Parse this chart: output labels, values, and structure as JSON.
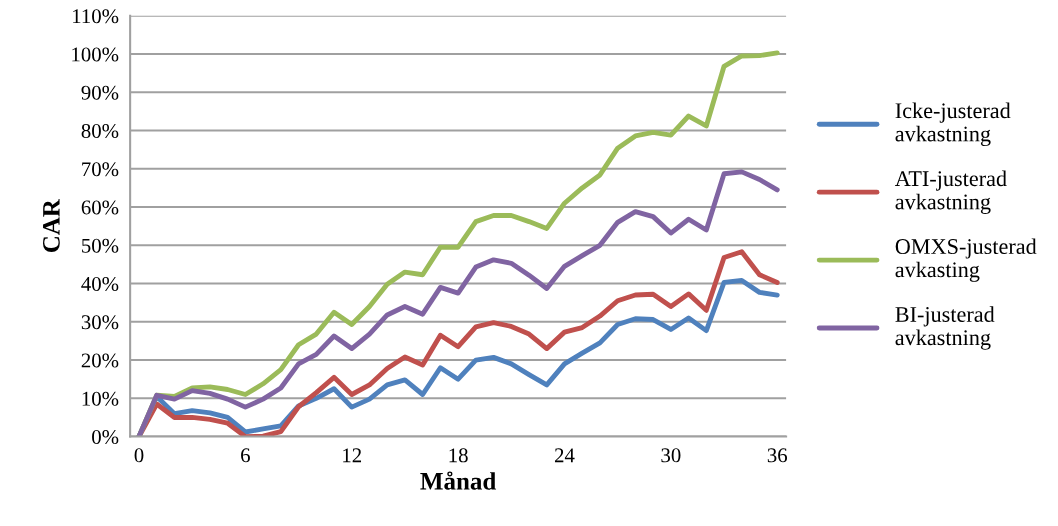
{
  "chart_data": {
    "type": "line",
    "xlabel": "Månad",
    "ylabel": "CAR",
    "x": [
      0,
      1,
      2,
      3,
      4,
      5,
      6,
      7,
      8,
      9,
      10,
      11,
      12,
      13,
      14,
      15,
      16,
      17,
      18,
      19,
      20,
      21,
      22,
      23,
      24,
      25,
      26,
      27,
      28,
      29,
      30,
      31,
      32,
      33,
      34,
      35,
      36
    ],
    "series": [
      {
        "name": "Icke-justerad avkastning",
        "color": "#4f81bd",
        "values": [
          0,
          10.5,
          6,
          6.8,
          6.2,
          5,
          1.2,
          2,
          2.8,
          8,
          10,
          12.5,
          7.7,
          9.8,
          13.5,
          14.8,
          11,
          18,
          15,
          20,
          20.7,
          19,
          16.2,
          13.5,
          19,
          21.8,
          24.5,
          29.3,
          30.8,
          30.6,
          28,
          31,
          27.7,
          40.3,
          40.8,
          37.7,
          37
        ]
      },
      {
        "name": "ATI-justerad avkastning",
        "color": "#c0504d",
        "values": [
          0,
          8.5,
          5,
          5,
          4.5,
          3.5,
          0,
          0.1,
          1.3,
          7.8,
          11.5,
          15.5,
          11,
          13.5,
          17.8,
          20.8,
          18.7,
          26.5,
          23.5,
          28.7,
          29.8,
          28.8,
          26.8,
          23,
          27.3,
          28.5,
          31.5,
          35.5,
          37,
          37.2,
          34,
          37.3,
          33,
          46.8,
          48.3,
          42.3,
          40.3
        ]
      },
      {
        "name": "OMXS-justerad avkasting",
        "color": "#9bbb59",
        "values": [
          0,
          10.8,
          10.5,
          12.7,
          13,
          12.3,
          11,
          13.8,
          17.5,
          24,
          26.8,
          32.5,
          29.3,
          34,
          39.8,
          43,
          42.3,
          49.5,
          49.5,
          56.2,
          57.8,
          57.8,
          56.2,
          54.4,
          61,
          65,
          68.4,
          75.4,
          78.6,
          79.5,
          78.8,
          83.8,
          81.2,
          96.8,
          99.5,
          99.6,
          100.3
        ]
      },
      {
        "name": "BI-justerad avkastning",
        "color": "#8064a2",
        "values": [
          0,
          10.8,
          9.8,
          12,
          11.3,
          9.8,
          7.7,
          9.8,
          12.7,
          19,
          21.5,
          26.3,
          23,
          26.8,
          31.8,
          34,
          32,
          39,
          37.5,
          44.3,
          46.2,
          45.3,
          42.2,
          38.7,
          44.5,
          47.3,
          50,
          56,
          58.8,
          57.5,
          53.2,
          56.8,
          54,
          68.7,
          69.2,
          67.2,
          64.5
        ]
      }
    ],
    "xlim": [
      -0.5,
      36.5
    ],
    "xticks": [
      0,
      6,
      12,
      18,
      24,
      30,
      36
    ],
    "ylim": [
      0,
      110
    ],
    "yticks": [
      {
        "value": 0,
        "label": "0%"
      },
      {
        "value": 10,
        "label": "10%"
      },
      {
        "value": 20,
        "label": "20%"
      },
      {
        "value": 30,
        "label": "30%"
      },
      {
        "value": 40,
        "label": "40%"
      },
      {
        "value": 50,
        "label": "50%"
      },
      {
        "value": 60,
        "label": "60%"
      },
      {
        "value": 70,
        "label": "70%"
      },
      {
        "value": 80,
        "label": "80%"
      },
      {
        "value": 90,
        "label": "90%"
      },
      {
        "value": 100,
        "label": "100%"
      },
      {
        "value": 110,
        "label": "110%"
      }
    ],
    "grid": "y",
    "legend": "right",
    "marker": "none",
    "line_style": "solid"
  }
}
